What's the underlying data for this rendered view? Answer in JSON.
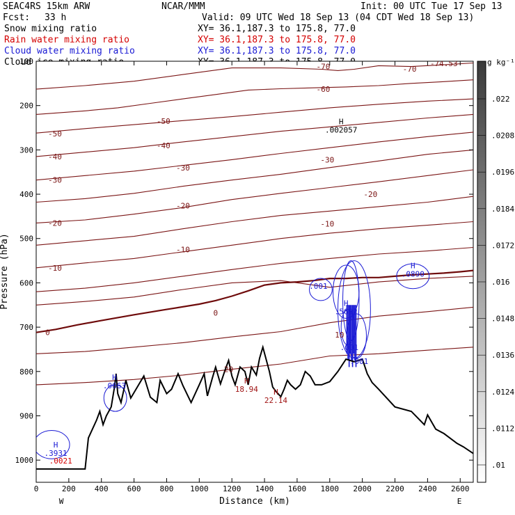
{
  "header": {
    "model": "SEAC4RS 15km ARW",
    "org": "NCAR/MMM",
    "init": "Init: 00 UTC Tue 17 Sep 13",
    "fcst_label": "Fcst:",
    "fcst_value": "33 h",
    "valid": "Valid: 09 UTC Wed 18 Sep 13 (04 CDT Wed 18 Sep 13)"
  },
  "fields": [
    {
      "name": "Snow mixing ratio",
      "xy": "XY=  36.1,187.3 to 175.8, 77.0",
      "color": "#000000"
    },
    {
      "name": "Rain water mixing ratio",
      "xy": "XY=  36.1,187.3 to 175.8, 77.0",
      "color": "#d40000"
    },
    {
      "name": "Cloud water mixing ratio",
      "xy": "XY=  36.1,187.3 to 175.8, 77.0",
      "color": "#1a1ad4"
    },
    {
      "name": "Cloud ice mixing ratio",
      "xy": "XY=  36.1,187.3 to 175.8, 77.0",
      "color": "#000000"
    }
  ],
  "colors": {
    "temperature": "#7a1414",
    "freezing": "#6e0a0a",
    "cloud_water": "#1a1ad4",
    "terrain": "#000000",
    "rain_labels": "#a01414"
  },
  "chart_data": {
    "type": "contour",
    "xlabel": "Distance (km)",
    "ylabel": "Pressure (hPa)",
    "xlim": [
      0,
      2680
    ],
    "ylim": [
      1050,
      100
    ],
    "x_ticks": [
      "0",
      "200",
      "400",
      "600",
      "800",
      "1000",
      "1200",
      "1400",
      "1600",
      "1800",
      "2000",
      "2200",
      "2400",
      "2600"
    ],
    "y_ticks": [
      "200",
      "300",
      "400",
      "500",
      "600",
      "700",
      "800",
      "900",
      "1000"
    ],
    "y_tick_top": "100",
    "end_labels": {
      "west": "W",
      "east": "E"
    },
    "colorbar": {
      "unit": "g kg⁻¹",
      "labels": [
        ".022",
        ".0208",
        ".0196",
        ".0184",
        ".0172",
        ".016",
        ".0148",
        ".0136",
        ".0124",
        ".0112",
        ".01"
      ]
    },
    "temperature_labels": [
      {
        "text": "-70",
        "x": 1760,
        "p": 112
      },
      {
        "text": "-70",
        "x": 2290,
        "p": 117
      },
      {
        "text": "-74.53",
        "x": 2500,
        "p": 105
      },
      {
        "text": "-60",
        "x": 1760,
        "p": 163
      },
      {
        "text": "-50",
        "x": 780,
        "p": 235
      },
      {
        "text": "-50",
        "x": 115,
        "p": 263
      },
      {
        "text": "-40",
        "x": 780,
        "p": 290
      },
      {
        "text": "-40",
        "x": 115,
        "p": 315
      },
      {
        "text": "-30",
        "x": 900,
        "p": 340
      },
      {
        "text": "-30",
        "x": 1785,
        "p": 322
      },
      {
        "text": "-30",
        "x": 115,
        "p": 368
      },
      {
        "text": "-20",
        "x": 900,
        "p": 426
      },
      {
        "text": "-20",
        "x": 2050,
        "p": 400
      },
      {
        "text": "-20",
        "x": 115,
        "p": 465
      },
      {
        "text": "-10",
        "x": 900,
        "p": 525
      },
      {
        "text": "-10",
        "x": 1785,
        "p": 467
      },
      {
        "text": "-10",
        "x": 115,
        "p": 566
      },
      {
        "text": "0",
        "x": 1100,
        "p": 668
      },
      {
        "text": "0",
        "x": 70,
        "p": 712
      },
      {
        "text": "10",
        "x": 1860,
        "p": 717
      },
      {
        "text": "20",
        "x": 1180,
        "p": 795
      }
    ],
    "highs": [
      {
        "label": "H",
        "value": ".002057",
        "x": 1870,
        "p": 245,
        "color": "#000000"
      },
      {
        "label": "H",
        "value": ".0890",
        "x": 2310,
        "p": 570,
        "color": "#1a1ad4"
      },
      {
        "label": "H",
        "value": ".5692",
        "x": 1900,
        "p": 655,
        "color": "#1a1ad4"
      },
      {
        "label": "H",
        "value": ".0663",
        "x": 480,
        "p": 822,
        "color": "#1a1ad4"
      },
      {
        "label": "H",
        "value": ".3931",
        "x": 120,
        "p": 975,
        "color": "#1a1ad4"
      },
      {
        "label": "H",
        "value": "18.94",
        "x": 1290,
        "p": 830,
        "color": "#a01414"
      },
      {
        "label": "H",
        "value": "22.14",
        "x": 1470,
        "p": 855,
        "color": "#a01414"
      },
      {
        "label": "",
        "value": ".0021",
        "x": 150,
        "p": 992,
        "color": "#d40000"
      }
    ],
    "cloud_labels": [
      {
        "text": ".001",
        "x": 1730,
        "p": 607
      },
      {
        "text": ".001",
        "x": 1920,
        "p": 745
      },
      {
        "text": ".001",
        "x": 1980,
        "p": 777
      }
    ],
    "terrain_profile": {
      "x": [
        0,
        300,
        320,
        370,
        390,
        410,
        430,
        460,
        480,
        490,
        500,
        520,
        550,
        580,
        620,
        660,
        700,
        740,
        760,
        800,
        830,
        870,
        900,
        950,
        1000,
        1030,
        1050,
        1080,
        1100,
        1130,
        1160,
        1180,
        1200,
        1220,
        1250,
        1280,
        1300,
        1320,
        1350,
        1370,
        1390,
        1430,
        1450,
        1470,
        1500,
        1520,
        1540,
        1560,
        1590,
        1620,
        1650,
        1680,
        1710,
        1750,
        1800,
        1850,
        1900,
        1950,
        2000,
        2030,
        2060,
        2100,
        2200,
        2300,
        2380,
        2400,
        2450,
        2500,
        2580,
        2620,
        2680
      ],
      "p": [
        1020,
        1020,
        950,
        910,
        890,
        920,
        900,
        880,
        835,
        805,
        850,
        870,
        820,
        860,
        835,
        810,
        858,
        870,
        820,
        850,
        840,
        805,
        832,
        870,
        830,
        805,
        855,
        815,
        790,
        828,
        795,
        775,
        810,
        830,
        790,
        800,
        830,
        790,
        808,
        770,
        745,
        800,
        835,
        845,
        857,
        840,
        820,
        830,
        840,
        830,
        800,
        810,
        830,
        830,
        823,
        800,
        772,
        778,
        772,
        805,
        825,
        840,
        880,
        890,
        920,
        898,
        930,
        940,
        962,
        970,
        985
      ]
    },
    "freezing_level": {
      "x": [
        0,
        120,
        250,
        400,
        600,
        800,
        1000,
        1100,
        1200,
        1300,
        1400,
        1500,
        1600,
        1700,
        1800,
        1900,
        2000,
        2100,
        2200,
        2300,
        2400,
        2500,
        2600,
        2680
      ],
      "p": [
        712,
        705,
        695,
        685,
        672,
        660,
        648,
        640,
        630,
        618,
        605,
        600,
        598,
        595,
        590,
        590,
        588,
        588,
        585,
        582,
        580,
        578,
        575,
        572
      ]
    },
    "temperature_contours": [
      {
        "x": [
          0,
          300,
          600,
          900,
          1200,
          1500,
          1750,
          1850,
          1950,
          2100,
          2300,
          2500,
          2680
        ],
        "p": [
          163,
          155,
          145,
          130,
          115,
          115,
          118,
          121,
          118,
          110,
          112,
          108,
          104
        ]
      },
      {
        "x": [
          0,
          300,
          500,
          700,
          900,
          1100,
          1300,
          1500,
          1700,
          1900,
          2100,
          2300,
          2500,
          2680
        ],
        "p": [
          220,
          212,
          205,
          195,
          185,
          175,
          165,
          162,
          160,
          158,
          155,
          150,
          146,
          142
        ]
      },
      {
        "x": [
          0,
          300,
          600,
          900,
          1200,
          1500,
          1800,
          2100,
          2400,
          2680
        ],
        "p": [
          262,
          252,
          243,
          234,
          225,
          215,
          205,
          197,
          190,
          185
        ]
      },
      {
        "x": [
          0,
          300,
          600,
          900,
          1200,
          1500,
          1800,
          2100,
          2400,
          2680
        ],
        "p": [
          315,
          305,
          295,
          282,
          270,
          258,
          248,
          238,
          228,
          220
        ]
      },
      {
        "x": [
          0,
          300,
          600,
          900,
          1200,
          1500,
          1800,
          2100,
          2400,
          2680
        ],
        "p": [
          368,
          358,
          348,
          335,
          322,
          308,
          295,
          282,
          270,
          260
        ]
      },
      {
        "x": [
          0,
          300,
          600,
          900,
          1200,
          1500,
          1800,
          2100,
          2400,
          2680
        ],
        "p": [
          418,
          410,
          398,
          382,
          368,
          355,
          340,
          325,
          310,
          300
        ]
      },
      {
        "x": [
          0,
          300,
          600,
          900,
          1200,
          1500,
          1800,
          2100,
          2400,
          2680
        ],
        "p": [
          465,
          458,
          445,
          430,
          412,
          398,
          385,
          372,
          358,
          345
        ]
      },
      {
        "x": [
          0,
          300,
          600,
          900,
          1200,
          1500,
          1800,
          2100,
          2400,
          2680
        ],
        "p": [
          515,
          505,
          495,
          478,
          462,
          448,
          438,
          428,
          418,
          405
        ]
      },
      {
        "x": [
          0,
          300,
          600,
          900,
          1200,
          1500,
          1800,
          2100,
          2400,
          2680
        ],
        "p": [
          566,
          555,
          545,
          530,
          515,
          500,
          488,
          478,
          470,
          462
        ]
      },
      {
        "x": [
          0,
          300,
          600,
          900,
          1200,
          1500,
          1800,
          2100,
          2400,
          2680
        ],
        "p": [
          620,
          612,
          600,
          585,
          570,
          556,
          545,
          535,
          528,
          520
        ]
      },
      {
        "x": [
          0,
          300,
          600,
          900,
          1200,
          1500,
          1800,
          2100,
          2400,
          2680
        ],
        "p": [
          650,
          642,
          632,
          615,
          600,
          595,
          610,
          598,
          590,
          585
        ]
      },
      {
        "x": [
          0,
          300,
          600,
          900,
          1200,
          1500,
          1800,
          2100,
          2400,
          2680
        ],
        "p": [
          760,
          755,
          745,
          735,
          722,
          710,
          690,
          675,
          665,
          655
        ]
      },
      {
        "x": [
          0,
          300,
          600,
          900,
          1200,
          1500,
          1800,
          2100,
          2400,
          2680
        ],
        "p": [
          830,
          825,
          818,
          808,
          795,
          783,
          765,
          760,
          752,
          745
        ]
      }
    ]
  }
}
